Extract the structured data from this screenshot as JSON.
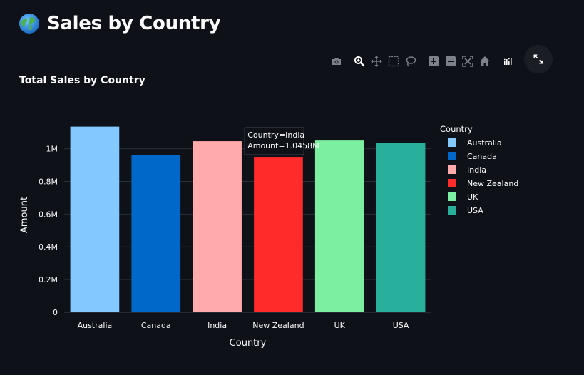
{
  "app": {
    "title": "Sales by Country",
    "icon": "globe-icon"
  },
  "toolbar": {
    "buttons": [
      {
        "icon": "camera-icon",
        "label": "Download plot as a png"
      },
      {
        "icon": "zoom-icon",
        "label": "Zoom"
      },
      {
        "icon": "pan-icon",
        "label": "Pan"
      },
      {
        "icon": "box-select-icon",
        "label": "Box Select"
      },
      {
        "icon": "lasso-select-icon",
        "label": "Lasso Select"
      },
      {
        "icon": "zoom-in-icon",
        "label": "Zoom in"
      },
      {
        "icon": "zoom-out-icon",
        "label": "Zoom out"
      },
      {
        "icon": "autoscale-icon",
        "label": "Autoscale"
      },
      {
        "icon": "home-icon",
        "label": "Reset axes"
      },
      {
        "icon": "plotly-logo-icon",
        "label": "Produced with Plotly"
      }
    ],
    "active": "zoom-icon",
    "expand_icon": "expand-icon"
  },
  "colors": {
    "background": "#0e1117",
    "grid": "#2a2e37",
    "text": "#fafafa"
  },
  "chart_data": {
    "type": "bar",
    "title": "Total Sales by Country",
    "xlabel": "Country",
    "ylabel": "Amount",
    "categories": [
      "Australia",
      "Canada",
      "India",
      "New Zealand",
      "UK",
      "USA"
    ],
    "values": [
      1135000,
      960000,
      1045800,
      950000,
      1050000,
      1035000
    ],
    "colors": [
      "#83c9ff",
      "#0068c9",
      "#ffabab",
      "#ff2b2b",
      "#7defa1",
      "#29b09d"
    ],
    "ylim": [
      0,
      1190000
    ],
    "yticks": [
      0,
      200000,
      400000,
      600000,
      800000,
      1000000
    ],
    "ytick_labels": [
      "0",
      "0.2M",
      "0.4M",
      "0.6M",
      "0.8M",
      "1M"
    ],
    "grid": true,
    "legend": {
      "title": "Country",
      "position": "right",
      "items": [
        "Australia",
        "Canada",
        "India",
        "New Zealand",
        "UK",
        "USA"
      ]
    },
    "tooltip": {
      "category": "India",
      "lines": [
        "Country=India",
        "Amount=1.0458M"
      ]
    }
  }
}
